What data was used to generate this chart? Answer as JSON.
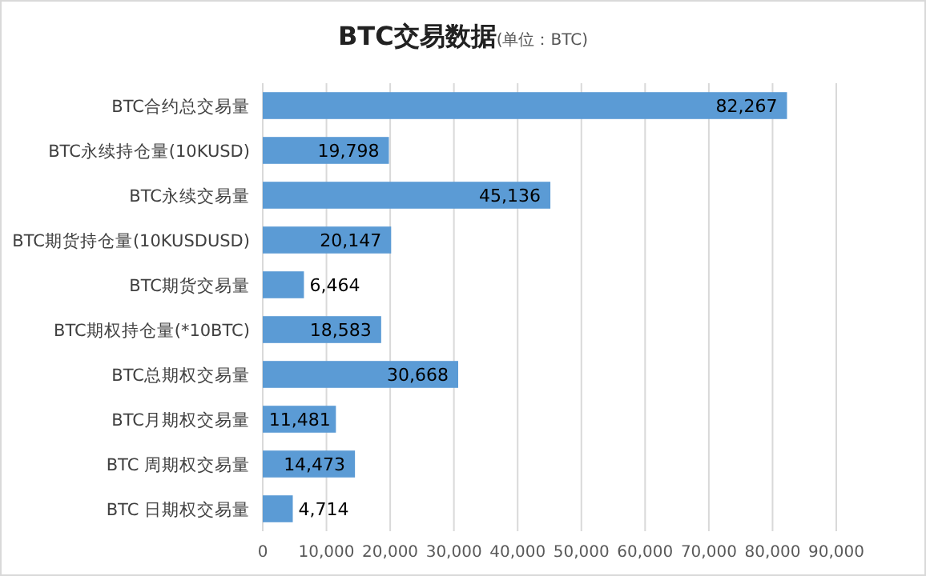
{
  "chart_data": {
    "type": "bar",
    "orientation": "horizontal",
    "title": "BTC交易数据",
    "subtitle": "(单位：BTC)",
    "categories": [
      "BTC合约总交易量",
      "BTC永续持仓量(10KUSD)",
      "BTC永续交易量",
      "BTC期货持仓量(10KUSDUSD)",
      "BTC期货交易量",
      "BTC期权持仓量(*10BTC)",
      "BTC总期权交易量",
      "BTC月期权交易量",
      "BTC  周期权交易量",
      "BTC  日期权交易量"
    ],
    "values": [
      82267,
      19798,
      45136,
      20147,
      6464,
      18583,
      30668,
      11481,
      14473,
      4714
    ],
    "color": "#5b9bd5",
    "xlim": [
      0,
      90000
    ],
    "xticks": [
      {
        "value": 0,
        "label": "0"
      },
      {
        "value": 10000,
        "label": "10,000"
      },
      {
        "value": 20000,
        "label": "20,000"
      },
      {
        "value": 30000,
        "label": "30,000"
      },
      {
        "value": 40000,
        "label": "40,000"
      },
      {
        "value": 50000,
        "label": "50,000"
      },
      {
        "value": 60000,
        "label": "60,000"
      },
      {
        "value": 70000,
        "label": "70,000"
      },
      {
        "value": 80000,
        "label": "80,000"
      },
      {
        "value": 90000,
        "label": "90,000"
      }
    ],
    "value_labels": [
      "82,267",
      "19,798",
      "45,136",
      "20,147",
      "6,464",
      "18,583",
      "30,668",
      "11,481",
      "14,473",
      "4,714"
    ],
    "grid": "x"
  }
}
